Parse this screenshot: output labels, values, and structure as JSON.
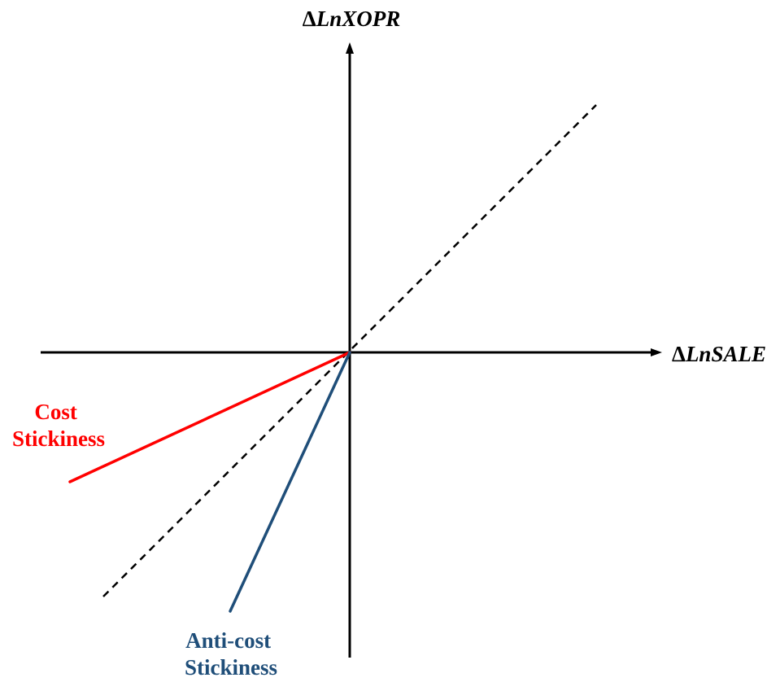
{
  "axes": {
    "y_label_delta": "Δ",
    "y_label": "LnXOPR",
    "x_label_delta": "Δ",
    "x_label": "LnSALE"
  },
  "lines": {
    "cost_stickiness": {
      "label_line1": "Cost",
      "label_line2": "Stickiness",
      "color": "#ff0000"
    },
    "anti_cost_stickiness": {
      "label_line1": "Anti-cost",
      "label_line2": "Stickiness",
      "color": "#1f4e79"
    },
    "reference": {
      "style": "dashed",
      "color": "#000000"
    }
  }
}
